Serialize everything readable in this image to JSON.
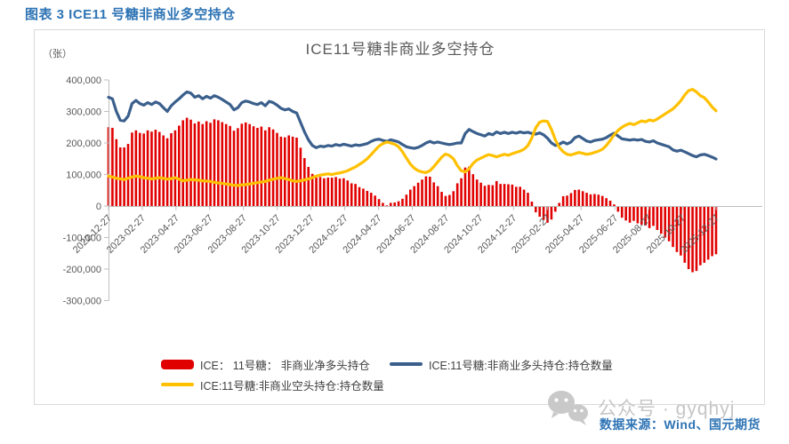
{
  "page": {
    "header": "图表 3 ICE11 号糖非商业多空持仓",
    "source": "数据来源：Wind、国元期货",
    "watermark": "公众号 · gyqhyj"
  },
  "chart_data": {
    "type": "combo",
    "title": "ICE11号糖非商业多空持仓",
    "grid": false,
    "legend_position": "bottom",
    "y_axis": {
      "unit_label": "（张）",
      "min": -300000,
      "max": 400000,
      "ticks": [
        {
          "value": 400000,
          "label": "400,000"
        },
        {
          "value": 300000,
          "label": "300,000"
        },
        {
          "value": 200000,
          "label": "200,000"
        },
        {
          "value": 100000,
          "label": "100,000"
        },
        {
          "value": 0,
          "label": "0"
        },
        {
          "value": -100000,
          "label": "-100,000"
        },
        {
          "value": -200000,
          "label": "-200,000"
        },
        {
          "value": -300000,
          "label": "-300,000"
        }
      ]
    },
    "x_axis": {
      "start_date": "2022-12-27",
      "step_days": 7,
      "tick_labels": [
        "2022-12-27",
        "2023-02-27",
        "2023-04-27",
        "2023-06-27",
        "2023-08-27",
        "2023-10-27",
        "2023-12-27",
        "2024-02-27",
        "2024-04-27",
        "2024-06-27",
        "2024-08-27",
        "2024-10-27",
        "2024-12-27",
        "2025-02-27",
        "2025-04-27",
        "2025-06-27",
        "2025-08-27",
        "2025-10-27",
        "2025-12-27"
      ]
    },
    "series": [
      {
        "name": "ICE： 11号糖： 非商业净多头持仓",
        "type": "bar",
        "color": "#E10000",
        "values": [
          250000,
          248000,
          212000,
          186000,
          186000,
          197000,
          233000,
          240000,
          232000,
          230000,
          240000,
          236000,
          242000,
          235000,
          224000,
          215000,
          231000,
          240000,
          255000,
          272000,
          280000,
          274000,
          262000,
          268000,
          260000,
          269000,
          264000,
          275000,
          272000,
          266000,
          260000,
          254000,
          239000,
          247000,
          261000,
          265000,
          260000,
          253000,
          248000,
          252000,
          240000,
          250000,
          243000,
          232000,
          220000,
          218000,
          224000,
          220000,
          217000,
          185000,
          152000,
          124000,
          102000,
          90000,
          92000,
          88000,
          90000,
          90000,
          92000,
          87000,
          88000,
          81000,
          72000,
          70000,
          60000,
          55000,
          48000,
          42000,
          33000,
          22000,
          10000,
          2000,
          10000,
          11000,
          15000,
          23000,
          36000,
          52000,
          63000,
          74000,
          84000,
          94000,
          93000,
          75000,
          63000,
          45000,
          32000,
          35000,
          47000,
          72000,
          88000,
          122000,
          125000,
          101000,
          84000,
          74000,
          64000,
          67000,
          66000,
          79000,
          70000,
          70000,
          69000,
          68000,
          61000,
          61000,
          52000,
          42000,
          14000,
          -20000,
          -34000,
          -44000,
          -53000,
          -43000,
          -18000,
          10000,
          31000,
          33000,
          41000,
          51000,
          52000,
          47000,
          42000,
          37000,
          38000,
          36000,
          32000,
          25000,
          17000,
          5000,
          -18000,
          -37000,
          -46000,
          -53000,
          -47000,
          -55000,
          -59000,
          -62000,
          -70000,
          -63000,
          -76000,
          -88000,
          -100000,
          -112000,
          -130000,
          -146000,
          -157000,
          -180000,
          -200000,
          -210000,
          -206000,
          -188000,
          -180000,
          -170000,
          -159000,
          -153000
        ]
      },
      {
        "name": "ICE:11号糖:非商业多头持仓:持仓数量",
        "type": "line",
        "color": "#3A5F8C",
        "values": [
          345000,
          340000,
          300000,
          272000,
          270000,
          285000,
          325000,
          335000,
          325000,
          320000,
          328000,
          322000,
          330000,
          325000,
          312000,
          300000,
          318000,
          330000,
          340000,
          352000,
          362000,
          358000,
          345000,
          350000,
          340000,
          348000,
          342000,
          350000,
          345000,
          338000,
          330000,
          322000,
          305000,
          312000,
          328000,
          333000,
          330000,
          325000,
          322000,
          328000,
          318000,
          332000,
          328000,
          320000,
          310000,
          305000,
          308000,
          300000,
          295000,
          265000,
          235000,
          210000,
          192000,
          185000,
          190000,
          188000,
          192000,
          190000,
          195000,
          192000,
          196000,
          193000,
          190000,
          194000,
          192000,
          195000,
          198000,
          205000,
          210000,
          212000,
          208000,
          205000,
          210000,
          207000,
          203000,
          195000,
          188000,
          185000,
          183000,
          186000,
          192000,
          200000,
          205000,
          200000,
          203000,
          200000,
          197000,
          195000,
          197000,
          200000,
          200000,
          230000,
          243000,
          236000,
          230000,
          226000,
          222000,
          230000,
          226000,
          235000,
          230000,
          234000,
          230000,
          234000,
          231000,
          235000,
          232000,
          234000,
          230000,
          228000,
          232000,
          226000,
          215000,
          200000,
          192000,
          196000,
          203000,
          197000,
          203000,
          217000,
          222000,
          214000,
          206000,
          203000,
          208000,
          210000,
          212000,
          217000,
          225000,
          231000,
          222000,
          213000,
          211000,
          209000,
          211000,
          209000,
          211000,
          205000,
          203000,
          207000,
          200000,
          196000,
          192000,
          188000,
          178000,
          174000,
          177000,
          172000,
          166000,
          160000,
          156000,
          162000,
          164000,
          160000,
          155000,
          149000
        ]
      },
      {
        "name": "ICE:11号糖:非商业空头持仓:持仓数量",
        "type": "line",
        "color": "#FFC000",
        "values": [
          95000,
          92000,
          88000,
          86000,
          84000,
          88000,
          92000,
          95000,
          93000,
          90000,
          88000,
          86000,
          88000,
          90000,
          88000,
          85000,
          87000,
          90000,
          85000,
          80000,
          82000,
          84000,
          83000,
          82000,
          80000,
          79000,
          78000,
          75000,
          73000,
          72000,
          70000,
          68000,
          66000,
          65000,
          67000,
          68000,
          70000,
          72000,
          74000,
          76000,
          78000,
          82000,
          85000,
          88000,
          90000,
          87000,
          84000,
          80000,
          78000,
          80000,
          83000,
          86000,
          90000,
          95000,
          98000,
          100000,
          102000,
          100000,
          103000,
          105000,
          108000,
          112000,
          118000,
          124000,
          132000,
          140000,
          150000,
          163000,
          177000,
          190000,
          198000,
          203000,
          200000,
          196000,
          188000,
          172000,
          152000,
          133000,
          120000,
          112000,
          108000,
          106000,
          112000,
          125000,
          140000,
          155000,
          165000,
          160000,
          150000,
          128000,
          112000,
          108000,
          118000,
          135000,
          146000,
          152000,
          158000,
          163000,
          160000,
          156000,
          160000,
          164000,
          161000,
          166000,
          170000,
          174000,
          180000,
          192000,
          216000,
          248000,
          266000,
          270000,
          268000,
          243000,
          210000,
          186000,
          172000,
          164000,
          162000,
          166000,
          170000,
          167000,
          164000,
          166000,
          170000,
          174000,
          180000,
          192000,
          208000,
          226000,
          240000,
          250000,
          257000,
          262000,
          258000,
          264000,
          270000,
          267000,
          273000,
          270000,
          276000,
          284000,
          292000,
          300000,
          308000,
          320000,
          334000,
          352000,
          366000,
          370000,
          362000,
          350000,
          344000,
          330000,
          314000,
          302000
        ]
      }
    ]
  }
}
